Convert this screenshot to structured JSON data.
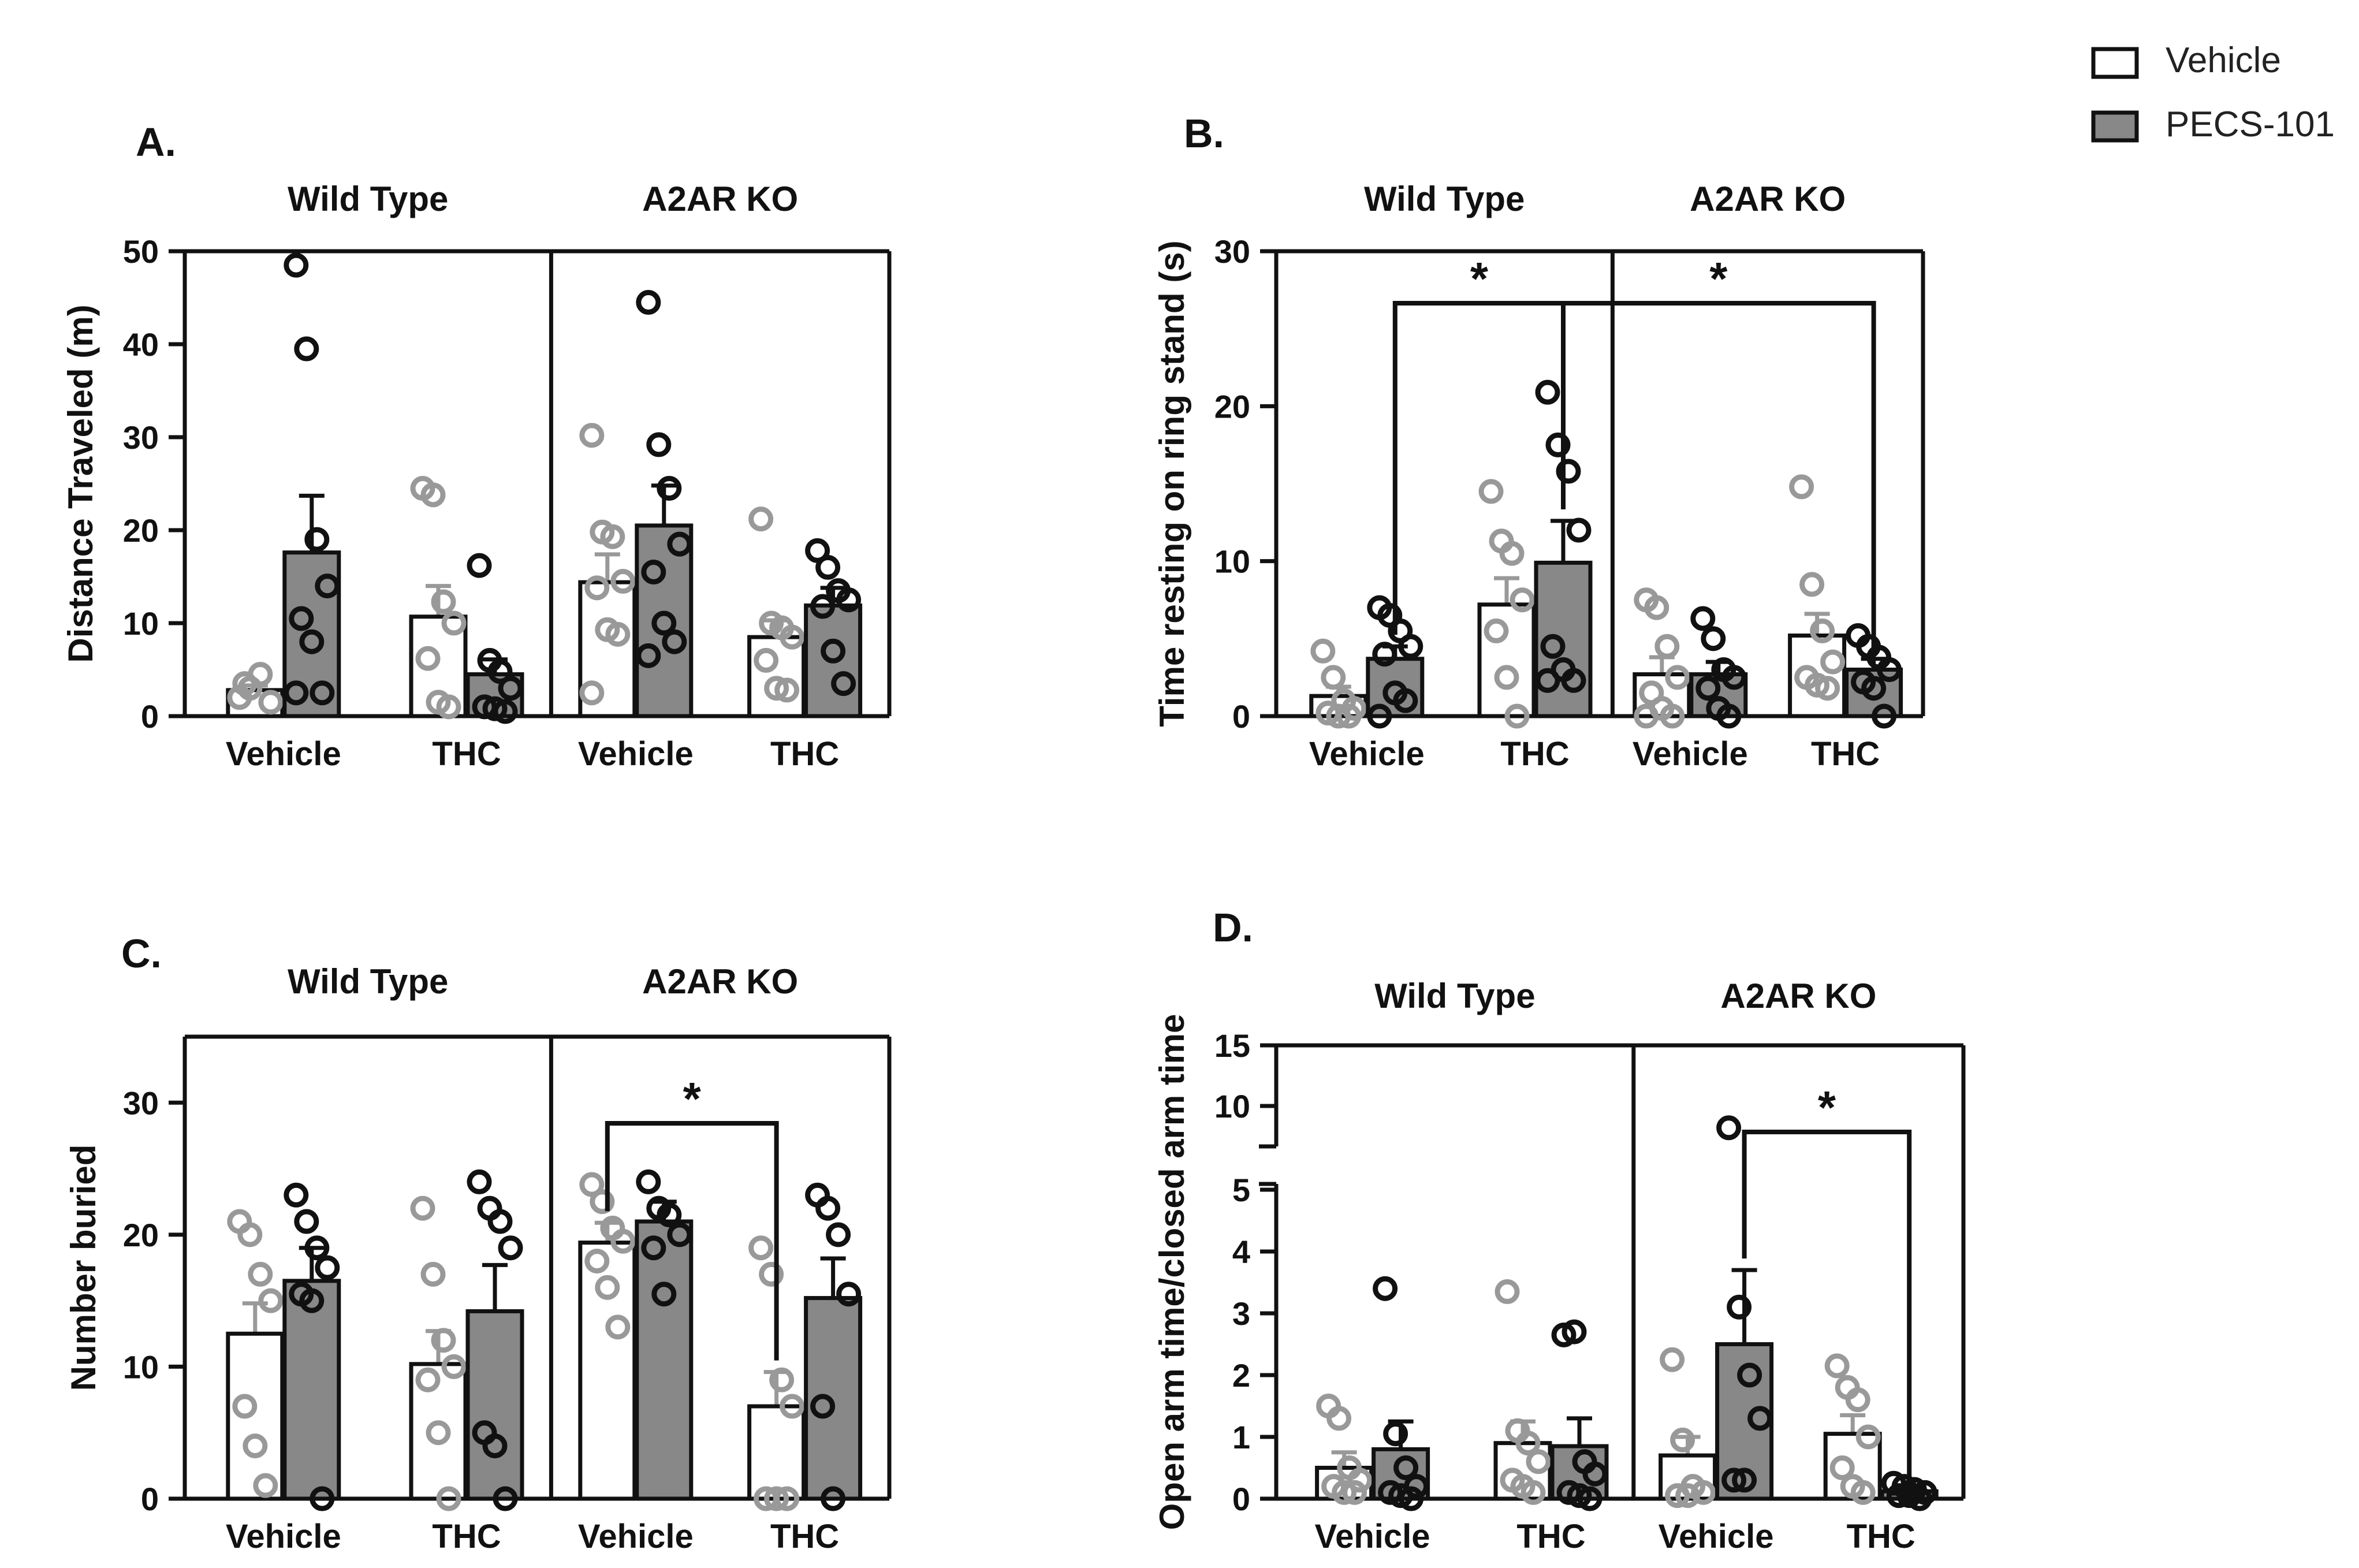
{
  "colors": {
    "vehicle_fill": "#ffffff",
    "pecs_fill": "#888888",
    "vehicle_points": "#999999",
    "pecs_points": "#111111",
    "axis": "#111111"
  },
  "legend": {
    "items": [
      {
        "label": "Vehicle",
        "fill": "#ffffff"
      },
      {
        "label": "PECS-101",
        "fill": "#888888"
      }
    ]
  },
  "chart_data": [
    {
      "panel": "A.",
      "type": "bar",
      "ylabel": "Distance Traveled (m)",
      "ylim": [
        0,
        50
      ],
      "yticks": [
        "0",
        "10",
        "20",
        "30",
        "40",
        "50"
      ],
      "groups": [
        "Wild Type",
        "A2AR KO"
      ],
      "categories": [
        "Vehicle",
        "THC",
        "Vehicle",
        "THC"
      ],
      "series": [
        {
          "name": "Vehicle",
          "values": [
            2.8,
            10.7,
            14.4,
            8.5
          ],
          "sem": [
            0.5,
            3.3,
            3.0,
            1.8
          ],
          "points": [
            [
              2.0,
              3.0,
              4.5,
              1.5,
              3.5
            ],
            [
              24.5,
              23.8,
              12.3,
              10.0,
              6.2,
              1.5,
              1.0
            ],
            [
              30.2,
              19.8,
              19.3,
              14.5,
              13.8,
              9.3,
              8.8,
              2.5
            ],
            [
              21.2,
              10.0,
              9.5,
              8.5,
              6.0,
              3.0,
              2.8
            ]
          ]
        },
        {
          "name": "PECS-101",
          "values": [
            17.6,
            4.5,
            20.5,
            11.9
          ],
          "sem": [
            6.1,
            1.6,
            4.3,
            1.9
          ],
          "points": [
            [
              48.5,
              39.5,
              19.0,
              14.0,
              10.5,
              8.0,
              2.5,
              2.5
            ],
            [
              16.2,
              6.0,
              4.8,
              3.0,
              1.0,
              0.8,
              0.5
            ],
            [
              44.5,
              29.2,
              24.5,
              18.5,
              15.5,
              10.0,
              8.0,
              6.5
            ],
            [
              17.8,
              16.0,
              13.5,
              12.5,
              11.8,
              7.0,
              3.5
            ]
          ]
        }
      ],
      "annotations": []
    },
    {
      "panel": "B.",
      "type": "bar",
      "ylabel": "Time resting on ring stand (s)",
      "ylim": [
        0,
        30
      ],
      "yticks": [
        "0",
        "10",
        "20",
        "30"
      ],
      "groups": [
        "Wild Type",
        "A2AR KO"
      ],
      "categories": [
        "Vehicle",
        "THC",
        "Vehicle",
        "THC"
      ],
      "series": [
        {
          "name": "Vehicle",
          "values": [
            1.3,
            7.2,
            2.7,
            5.2
          ],
          "sem": [
            0.6,
            1.7,
            1.1,
            1.4
          ],
          "points": [
            [
              4.2,
              2.5,
              1.0,
              0.5,
              0.2,
              0.0,
              0.0
            ],
            [
              14.5,
              11.3,
              10.5,
              7.5,
              5.5,
              2.5,
              0.0
            ],
            [
              7.5,
              7.0,
              4.5,
              2.5,
              1.5,
              0.5,
              0.0,
              0.0
            ],
            [
              14.8,
              8.5,
              5.5,
              3.5,
              2.5,
              2.0,
              1.8
            ]
          ]
        },
        {
          "name": "PECS-101",
          "values": [
            3.7,
            9.9,
            2.7,
            3.0
          ],
          "sem": [
            0.8,
            2.7,
            0.8,
            0.7
          ],
          "points": [
            [
              7.0,
              6.5,
              5.5,
              4.5,
              4.0,
              1.5,
              1.0,
              0.0
            ],
            [
              20.9,
              17.5,
              15.8,
              12.0,
              4.5,
              3.0,
              2.3,
              2.3
            ],
            [
              6.3,
              5.0,
              3.0,
              2.5,
              1.8,
              0.5,
              0.0
            ],
            [
              5.2,
              4.5,
              3.8,
              3.0,
              2.2,
              1.8,
              0.0
            ]
          ]
        }
      ],
      "annotations": [
        {
          "text": "*",
          "from": [
            0,
            1
          ],
          "to": [
            1,
            1
          ]
        },
        {
          "text": "*",
          "from": [
            1,
            1
          ],
          "to": [
            3,
            1
          ]
        }
      ]
    },
    {
      "panel": "C.",
      "type": "bar",
      "ylabel": "Number buried",
      "ylim": [
        0,
        35
      ],
      "yticks": [
        "0",
        "10",
        "20",
        "30"
      ],
      "groups": [
        "Wild Type",
        "A2AR KO"
      ],
      "categories": [
        "Vehicle",
        "THC",
        "Vehicle",
        "THC"
      ],
      "series": [
        {
          "name": "Vehicle",
          "values": [
            12.5,
            10.2,
            19.4,
            7.0
          ],
          "sem": [
            2.3,
            2.5,
            1.5,
            2.6
          ],
          "points": [
            [
              21.0,
              20.0,
              17.0,
              15.0,
              7.0,
              4.0,
              1.0
            ],
            [
              22.0,
              17.0,
              12.0,
              10.0,
              9.0,
              5.0,
              0.0
            ],
            [
              23.8,
              22.5,
              20.5,
              19.5,
              18.0,
              16.0,
              13.0
            ],
            [
              19.0,
              17.0,
              9.0,
              7.0,
              0.0,
              0.0,
              0.0
            ]
          ]
        },
        {
          "name": "PECS-101",
          "values": [
            16.5,
            14.2,
            21.0,
            15.2
          ],
          "sem": [
            2.5,
            3.5,
            1.5,
            3.0
          ],
          "points": [
            [
              23.0,
              21.0,
              19.0,
              17.5,
              15.5,
              15.0,
              0.0
            ],
            [
              24.0,
              22.0,
              21.0,
              19.0,
              5.0,
              4.0,
              0.0
            ],
            [
              24.0,
              22.0,
              21.5,
              20.0,
              19.0,
              15.5
            ],
            [
              23.0,
              22.0,
              20.0,
              15.5,
              7.0,
              0.0
            ]
          ]
        }
      ],
      "annotations": [
        {
          "text": "*",
          "from": [
            2,
            0
          ],
          "to": [
            3,
            0
          ]
        }
      ]
    },
    {
      "panel": "D.",
      "type": "bar",
      "ylabel": "Open arm time/closed arm time",
      "axis_break": true,
      "ylim": [
        0,
        15
      ],
      "yticks": [
        "0",
        "1",
        "2",
        "3",
        "4",
        "5",
        "10",
        "15"
      ],
      "groups": [
        "Wild Type",
        "A2AR KO"
      ],
      "categories": [
        "Vehicle",
        "THC",
        "Vehicle",
        "THC"
      ],
      "series": [
        {
          "name": "Vehicle",
          "values": [
            0.5,
            0.9,
            0.7,
            1.05
          ],
          "sem": [
            0.25,
            0.35,
            0.3,
            0.3
          ],
          "points": [
            [
              1.5,
              1.3,
              0.5,
              0.3,
              0.2,
              0.1,
              0.1
            ],
            [
              3.35,
              1.1,
              0.9,
              0.6,
              0.3,
              0.2,
              0.1
            ],
            [
              2.25,
              0.95,
              0.2,
              0.1,
              0.05,
              0.05
            ],
            [
              2.15,
              1.8,
              1.6,
              1.0,
              0.5,
              0.2,
              0.1
            ]
          ]
        },
        {
          "name": "PECS-101",
          "values": [
            0.8,
            0.85,
            2.5,
            0.12
          ],
          "sem": [
            0.45,
            0.45,
            1.2,
            0.05
          ],
          "points": [
            [
              3.4,
              1.05,
              0.5,
              0.2,
              0.1,
              0.05,
              0.0
            ],
            [
              2.65,
              2.7,
              0.6,
              0.4,
              0.1,
              0.05,
              0.0
            ],
            [
              8.2,
              3.1,
              2.0,
              1.3,
              0.3,
              0.3
            ],
            [
              0.25,
              0.2,
              0.15,
              0.1,
              0.05,
              0.05,
              0.0
            ]
          ]
        }
      ],
      "annotations": [
        {
          "text": "*",
          "from": [
            2,
            1
          ],
          "to": [
            3,
            1
          ]
        }
      ]
    }
  ]
}
